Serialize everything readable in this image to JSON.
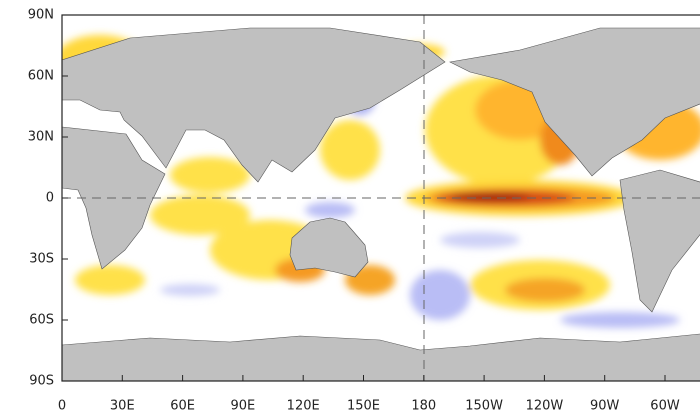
{
  "map": {
    "lat_labels": [
      "90N",
      "60N",
      "30N",
      "0",
      "30S",
      "60S",
      "90S"
    ],
    "lon_labels": [
      "0",
      "30E",
      "60E",
      "90E",
      "120E",
      "150E",
      "180",
      "150W",
      "120W",
      "90W",
      "60W"
    ]
  }
}
